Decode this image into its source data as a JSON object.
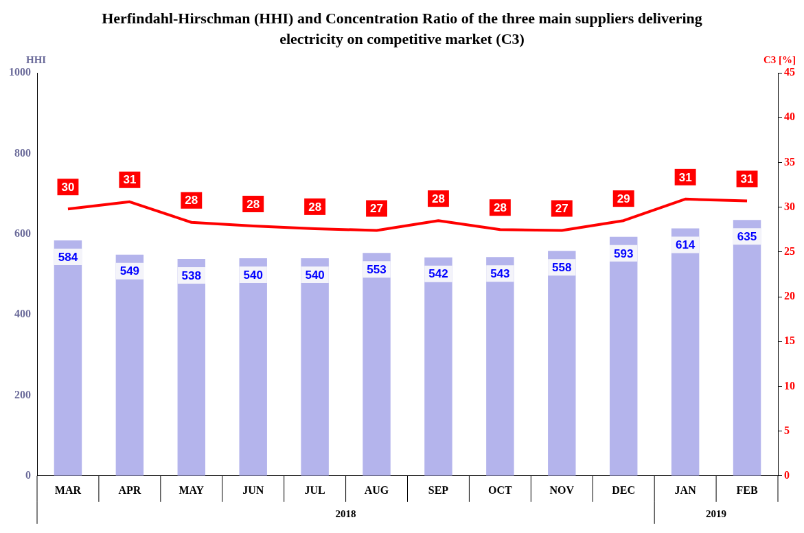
{
  "chart_data": {
    "type": "bar",
    "title": "Herfindahl-Hirschman (HHI) and Concentration Ratio of the three main suppliers delivering electricity on competitive market (C3)",
    "ylabel": "HHI",
    "y2label": "C3 [%]",
    "categories": [
      "MAR",
      "APR",
      "MAY",
      "JUN",
      "JUL",
      "AUG",
      "SEP",
      "OCT",
      "NOV",
      "DEC",
      "JAN",
      "FEB"
    ],
    "series": [
      {
        "color": "#b4b4ec",
        "values": [
          584,
          549,
          538,
          540,
          540,
          553,
          542,
          543,
          558,
          593,
          614,
          635
        ],
        "value_labels": [
          "584",
          "549",
          "538",
          "540",
          "540",
          "553",
          "542",
          "543",
          "558",
          "593",
          "614",
          "635"
        ]
      },
      {
        "type": "line",
        "axis": "y2",
        "color": "#ff0000",
        "values": [
          29.8,
          30.6,
          28.3,
          27.9,
          27.6,
          27.4,
          28.5,
          27.5,
          27.4,
          28.5,
          30.9,
          30.7
        ],
        "value_labels": [
          "30",
          "31",
          "28",
          "28",
          "28",
          "27",
          "28",
          "28",
          "27",
          "29",
          "31",
          "31"
        ]
      }
    ],
    "ylim": [
      0,
      1000
    ],
    "yticks": [
      0,
      200,
      400,
      600,
      800,
      1000
    ],
    "y2lim": [
      0,
      45
    ],
    "y2ticks": [
      0,
      5,
      10,
      15,
      20,
      25,
      30,
      35,
      40,
      45
    ],
    "annotations": [
      "2018",
      "2019"
    ],
    "grid": false,
    "legend": false,
    "marker": "none",
    "line_style": "solid"
  }
}
